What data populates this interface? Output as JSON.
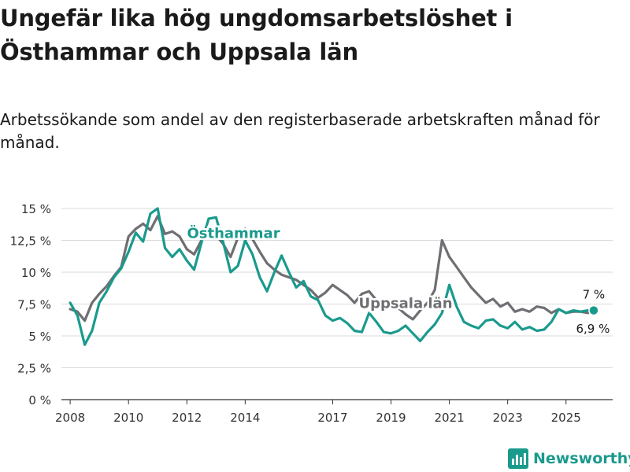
{
  "header": {
    "title": "Ungefär lika hög ungdomsarbetslöshet i Östhammar och Uppsala län",
    "subtitle": "Arbetssökande som andel av den registerbaserade arbetskraften månad för månad."
  },
  "brand": {
    "name": "Newsworthy",
    "icon": "bar-chart-logo-icon"
  },
  "colors": {
    "osthammar": "#1a9a8d",
    "uppsala": "#6e6e73",
    "grid": "#d9d9d9",
    "axis": "#555555"
  },
  "chart_data": {
    "type": "line",
    "title": "Ungefär lika hög ungdomsarbetslöshet i Östhammar och Uppsala län",
    "xlabel": "",
    "ylabel": "",
    "xlim": [
      2007.7,
      2026.6
    ],
    "ylim": [
      0,
      15
    ],
    "y_ticks": [
      {
        "value": 0,
        "label": "0 %"
      },
      {
        "value": 2.5,
        "label": "2,5 %"
      },
      {
        "value": 5,
        "label": "5 %"
      },
      {
        "value": 7.5,
        "label": "7,5 %"
      },
      {
        "value": 10,
        "label": "10 %"
      },
      {
        "value": 12.5,
        "label": "12,5 %"
      },
      {
        "value": 15,
        "label": "15 %"
      }
    ],
    "x_ticks": [
      {
        "value": 2008,
        "label": "2008"
      },
      {
        "value": 2010,
        "label": "2010"
      },
      {
        "value": 2012,
        "label": "2012"
      },
      {
        "value": 2014,
        "label": "2014"
      },
      {
        "value": 2017,
        "label": "2017"
      },
      {
        "value": 2019,
        "label": "2019"
      },
      {
        "value": 2021,
        "label": "2021"
      },
      {
        "value": 2023,
        "label": "2023"
      },
      {
        "value": 2025,
        "label": "2025"
      }
    ],
    "series": [
      {
        "name": "Uppsala län",
        "label_text": "Uppsala län",
        "label_at": [
          2019.5,
          7.2
        ],
        "end_label": "6,9 %",
        "x": [
          2008.0,
          2008.25,
          2008.5,
          2008.75,
          2009.0,
          2009.25,
          2009.5,
          2009.75,
          2010.0,
          2010.25,
          2010.5,
          2010.75,
          2011.0,
          2011.25,
          2011.5,
          2011.75,
          2012.0,
          2012.25,
          2012.5,
          2012.75,
          2013.0,
          2013.25,
          2013.5,
          2013.75,
          2014.0,
          2014.25,
          2014.5,
          2014.75,
          2015.0,
          2015.25,
          2015.5,
          2015.75,
          2016.0,
          2016.25,
          2016.5,
          2016.75,
          2017.0,
          2017.25,
          2017.5,
          2017.75,
          2018.0,
          2018.25,
          2018.5,
          2018.75,
          2019.0,
          2019.25,
          2019.5,
          2019.75,
          2020.0,
          2020.25,
          2020.5,
          2020.75,
          2021.0,
          2021.25,
          2021.5,
          2021.75,
          2022.0,
          2022.25,
          2022.5,
          2022.75,
          2023.0,
          2023.25,
          2023.5,
          2023.75,
          2024.0,
          2024.25,
          2024.5,
          2024.75,
          2025.0,
          2025.25,
          2025.5,
          2025.75,
          2025.95
        ],
        "values": [
          7.1,
          6.9,
          6.2,
          7.6,
          8.3,
          8.9,
          9.7,
          10.4,
          12.8,
          13.4,
          13.8,
          13.3,
          14.4,
          13.0,
          13.2,
          12.8,
          11.8,
          11.4,
          12.5,
          13.3,
          12.9,
          12.2,
          11.2,
          12.7,
          13.4,
          12.6,
          11.6,
          10.7,
          10.2,
          9.8,
          9.6,
          9.4,
          9.0,
          8.6,
          8.0,
          8.4,
          9.0,
          8.6,
          8.2,
          7.6,
          8.3,
          8.5,
          7.8,
          7.1,
          7.6,
          7.2,
          6.7,
          6.3,
          7.0,
          7.6,
          8.6,
          12.5,
          11.2,
          10.4,
          9.6,
          8.8,
          8.2,
          7.6,
          7.9,
          7.3,
          7.6,
          6.9,
          7.1,
          6.9,
          7.3,
          7.2,
          6.8,
          7.1,
          6.8,
          6.9,
          6.9,
          6.8,
          6.9
        ]
      },
      {
        "name": "Östhammar",
        "label_text": "Östhammar",
        "label_at": [
          2013.6,
          12.7
        ],
        "end_label": "7 %",
        "x": [
          2008.0,
          2008.25,
          2008.5,
          2008.75,
          2009.0,
          2009.25,
          2009.5,
          2009.75,
          2010.0,
          2010.25,
          2010.5,
          2010.75,
          2011.0,
          2011.25,
          2011.5,
          2011.75,
          2012.0,
          2012.25,
          2012.5,
          2012.75,
          2013.0,
          2013.25,
          2013.5,
          2013.75,
          2014.0,
          2014.25,
          2014.5,
          2014.75,
          2015.0,
          2015.25,
          2015.5,
          2015.75,
          2016.0,
          2016.25,
          2016.5,
          2016.75,
          2017.0,
          2017.25,
          2017.5,
          2017.75,
          2018.0,
          2018.25,
          2018.5,
          2018.75,
          2019.0,
          2019.25,
          2019.5,
          2019.75,
          2020.0,
          2020.25,
          2020.5,
          2020.75,
          2021.0,
          2021.25,
          2021.5,
          2021.75,
          2022.0,
          2022.25,
          2022.5,
          2022.75,
          2023.0,
          2023.25,
          2023.5,
          2023.75,
          2024.0,
          2024.25,
          2024.5,
          2024.75,
          2025.0,
          2025.25,
          2025.5,
          2025.75,
          2025.95
        ],
        "values": [
          7.6,
          6.6,
          4.3,
          5.4,
          7.6,
          8.5,
          9.6,
          10.3,
          11.6,
          13.1,
          12.4,
          14.6,
          15.0,
          11.9,
          11.2,
          11.8,
          10.9,
          10.2,
          12.3,
          14.2,
          14.3,
          12.3,
          10.0,
          10.5,
          12.5,
          11.4,
          9.6,
          8.5,
          10.0,
          11.3,
          10.0,
          8.8,
          9.3,
          8.1,
          7.8,
          6.6,
          6.2,
          6.4,
          6.0,
          5.4,
          5.3,
          6.8,
          6.1,
          5.3,
          5.2,
          5.4,
          5.8,
          5.2,
          4.6,
          5.3,
          5.9,
          6.8,
          9.0,
          7.3,
          6.1,
          5.8,
          5.6,
          6.2,
          6.3,
          5.8,
          5.6,
          6.1,
          5.5,
          5.7,
          5.4,
          5.5,
          6.1,
          7.1,
          6.8,
          7.0,
          6.9,
          7.0,
          7.0
        ]
      }
    ]
  }
}
